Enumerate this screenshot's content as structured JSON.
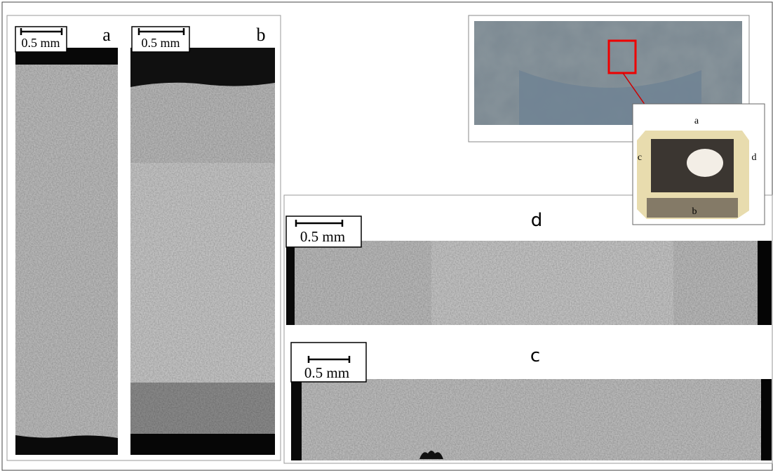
{
  "panels": [
    {
      "label": "a",
      "scale": "0.5 mm"
    },
    {
      "label": "b",
      "scale": "0.5 mm"
    },
    {
      "label": "d",
      "scale": "0.5 mm"
    },
    {
      "label": "c",
      "scale": "0.5 mm"
    }
  ],
  "inset": {
    "labels": {
      "top": "a",
      "bottom": "b",
      "left": "c",
      "right": "d"
    }
  }
}
